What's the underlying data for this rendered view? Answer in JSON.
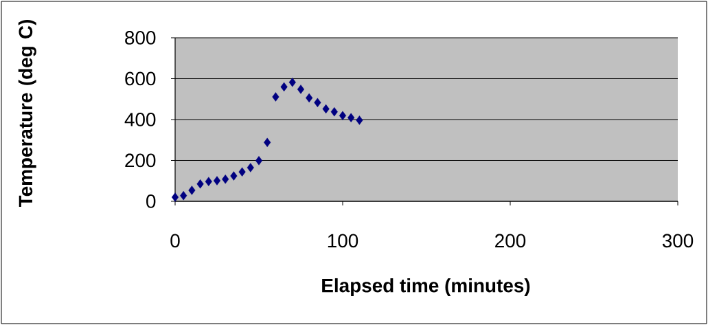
{
  "chart_data": {
    "type": "scatter",
    "xlabel": "Elapsed time (minutes)",
    "ylabel": "Temperature (deg C)",
    "x": [
      0,
      5,
      10,
      15,
      20,
      25,
      30,
      35,
      40,
      45,
      50,
      55,
      60,
      65,
      70,
      75,
      80,
      85,
      90,
      95,
      100,
      105,
      110
    ],
    "values": [
      20,
      28,
      54,
      85,
      97,
      101,
      108,
      124,
      144,
      165,
      199,
      288,
      511,
      560,
      582,
      548,
      506,
      483,
      452,
      438,
      419,
      409,
      397
    ],
    "color": "#000080",
    "marker": "diamond",
    "xlim": [
      0,
      300
    ],
    "xticks": [
      0,
      100,
      200,
      300
    ],
    "ylim": [
      0,
      800
    ],
    "yticks": [
      0,
      200,
      400,
      600,
      800
    ],
    "grid": "y"
  }
}
